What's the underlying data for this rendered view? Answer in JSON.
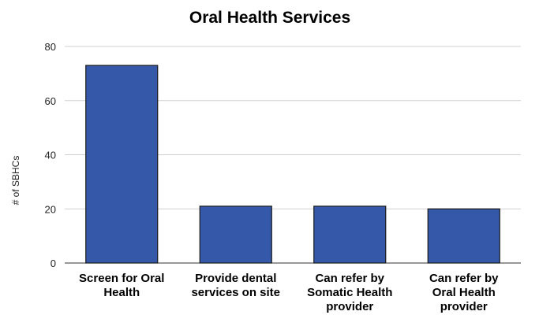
{
  "colors": {
    "bar": "#3558a8",
    "grid": "#d0d0d0",
    "background": "#ffffff"
  },
  "chart_data": {
    "type": "bar",
    "title": "Oral Health Services",
    "xlabel": "",
    "ylabel": "# of SBHCs",
    "ylim": [
      0,
      80
    ],
    "yticks": [
      0,
      20,
      40,
      60,
      80
    ],
    "grid": true,
    "legend": "none",
    "categories": [
      [
        "Screen for Oral",
        "Health"
      ],
      [
        "Provide dental",
        "services on site"
      ],
      [
        "Can refer by",
        "Somatic Health",
        "provider"
      ],
      [
        "Can refer by",
        "Oral Health",
        "provider"
      ]
    ],
    "values": [
      73,
      21,
      21,
      20
    ]
  }
}
